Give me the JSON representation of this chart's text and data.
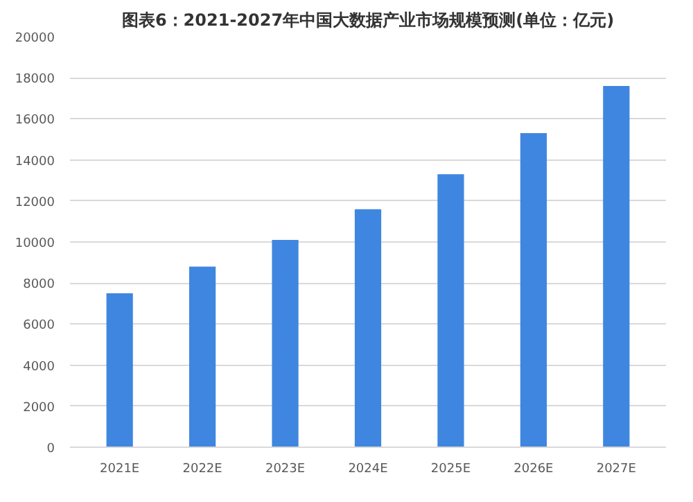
{
  "chart_data": {
    "type": "bar",
    "title": "图表6：2021-2027年中国大数据产业市场规模预测(单位：亿元)",
    "categories": [
      "2021E",
      "2022E",
      "2023E",
      "2024E",
      "2025E",
      "2026E",
      "2027E"
    ],
    "values": [
      7500,
      8800,
      10100,
      11600,
      13300,
      15300,
      17600
    ],
    "color": "#3f86e0",
    "ylim": [
      0,
      20000
    ],
    "yticks": [
      0,
      2000,
      4000,
      6000,
      8000,
      10000,
      12000,
      14000,
      16000,
      18000,
      20000
    ],
    "grid": "y"
  }
}
